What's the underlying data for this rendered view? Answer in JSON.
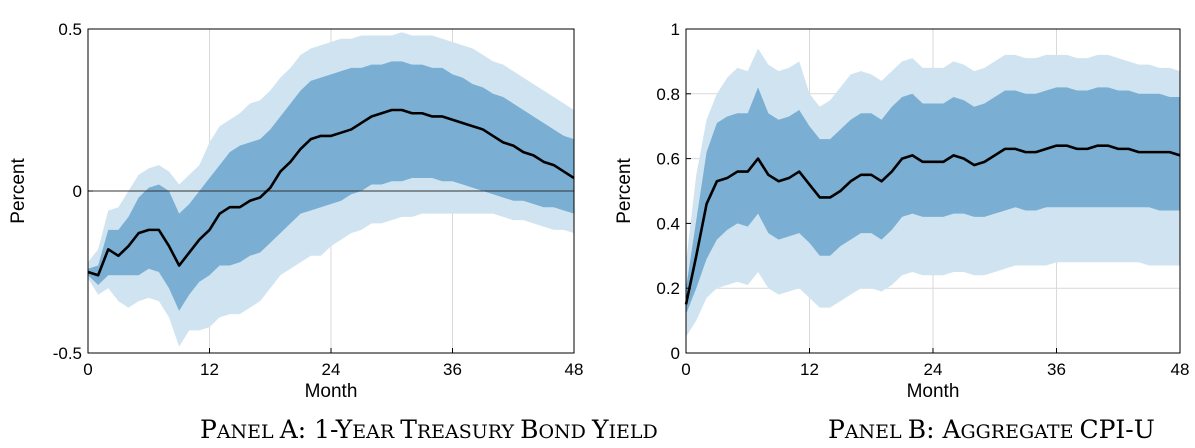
{
  "colors": {
    "outer_band": "#cfe4f0",
    "inner_band": "#7aafd3",
    "line": "#000000",
    "grid": "#d9d9d9",
    "zero_line": "#333333"
  },
  "chart_data": [
    {
      "type": "area",
      "caption_parts": [
        {
          "t": "P",
          "big": true
        },
        {
          "t": "ANEL ",
          "big": false
        },
        {
          "t": "A: 1-Y",
          "big": true
        },
        {
          "t": "EAR ",
          "big": false
        },
        {
          "t": "T",
          "big": true
        },
        {
          "t": "REASURY ",
          "big": false
        },
        {
          "t": "B",
          "big": true
        },
        {
          "t": "OND ",
          "big": false
        },
        {
          "t": "Y",
          "big": true
        },
        {
          "t": "IELD",
          "big": false
        }
      ],
      "xlabel": "Month",
      "ylabel": "Percent",
      "xlim": [
        0,
        48
      ],
      "ylim": [
        -0.5,
        0.5
      ],
      "xticks": [
        0,
        12,
        24,
        36,
        48
      ],
      "yticks": [
        -0.5,
        0,
        0.5
      ],
      "ytick_labels": [
        "-0.5",
        "0",
        "0.5"
      ],
      "zero_line": true,
      "grid": "vertical",
      "x": [
        0,
        1,
        2,
        3,
        4,
        5,
        6,
        7,
        8,
        9,
        10,
        11,
        12,
        13,
        14,
        15,
        16,
        17,
        18,
        19,
        20,
        21,
        22,
        23,
        24,
        25,
        26,
        27,
        28,
        29,
        30,
        31,
        32,
        33,
        34,
        35,
        36,
        37,
        38,
        39,
        40,
        41,
        42,
        43,
        44,
        45,
        46,
        47,
        48
      ],
      "series": [
        {
          "role": "point_estimate",
          "values": [
            -0.25,
            -0.26,
            -0.18,
            -0.2,
            -0.17,
            -0.13,
            -0.12,
            -0.12,
            -0.17,
            -0.23,
            -0.19,
            -0.15,
            -0.12,
            -0.07,
            -0.05,
            -0.05,
            -0.03,
            -0.02,
            0.01,
            0.06,
            0.09,
            0.13,
            0.16,
            0.17,
            0.17,
            0.18,
            0.19,
            0.21,
            0.23,
            0.24,
            0.25,
            0.25,
            0.24,
            0.24,
            0.23,
            0.23,
            0.22,
            0.21,
            0.2,
            0.19,
            0.17,
            0.15,
            0.14,
            0.12,
            0.11,
            0.09,
            0.08,
            0.06,
            0.04
          ]
        },
        {
          "role": "inner_band",
          "lower": [
            -0.26,
            -0.29,
            -0.26,
            -0.26,
            -0.26,
            -0.26,
            -0.24,
            -0.25,
            -0.3,
            -0.37,
            -0.32,
            -0.28,
            -0.26,
            -0.23,
            -0.23,
            -0.22,
            -0.2,
            -0.19,
            -0.16,
            -0.13,
            -0.1,
            -0.07,
            -0.06,
            -0.05,
            -0.04,
            -0.03,
            -0.01,
            0.0,
            0.02,
            0.02,
            0.03,
            0.03,
            0.04,
            0.04,
            0.04,
            0.03,
            0.03,
            0.02,
            0.01,
            0.0,
            -0.01,
            -0.02,
            -0.03,
            -0.03,
            -0.04,
            -0.05,
            -0.05,
            -0.06,
            -0.07
          ],
          "upper": [
            -0.24,
            -0.23,
            -0.12,
            -0.12,
            -0.08,
            -0.02,
            0.01,
            0.02,
            0.0,
            -0.07,
            -0.04,
            0.0,
            0.04,
            0.08,
            0.12,
            0.14,
            0.15,
            0.16,
            0.19,
            0.23,
            0.27,
            0.31,
            0.34,
            0.35,
            0.36,
            0.37,
            0.38,
            0.38,
            0.39,
            0.39,
            0.4,
            0.4,
            0.39,
            0.39,
            0.38,
            0.38,
            0.36,
            0.35,
            0.33,
            0.32,
            0.3,
            0.29,
            0.27,
            0.25,
            0.23,
            0.21,
            0.19,
            0.17,
            0.16
          ]
        },
        {
          "role": "outer_band",
          "lower": [
            -0.27,
            -0.32,
            -0.3,
            -0.34,
            -0.36,
            -0.34,
            -0.33,
            -0.34,
            -0.39,
            -0.48,
            -0.43,
            -0.43,
            -0.42,
            -0.39,
            -0.38,
            -0.38,
            -0.36,
            -0.34,
            -0.3,
            -0.26,
            -0.24,
            -0.22,
            -0.2,
            -0.2,
            -0.17,
            -0.15,
            -0.13,
            -0.12,
            -0.1,
            -0.1,
            -0.09,
            -0.08,
            -0.08,
            -0.07,
            -0.07,
            -0.07,
            -0.07,
            -0.07,
            -0.07,
            -0.07,
            -0.07,
            -0.08,
            -0.09,
            -0.09,
            -0.1,
            -0.11,
            -0.12,
            -0.12,
            -0.13
          ]
        },
        {
          "role": "outer_band_upper",
          "upper": [
            -0.22,
            -0.18,
            -0.06,
            -0.05,
            0.0,
            0.05,
            0.07,
            0.08,
            0.06,
            0.02,
            0.05,
            0.08,
            0.15,
            0.2,
            0.22,
            0.24,
            0.27,
            0.28,
            0.31,
            0.35,
            0.38,
            0.42,
            0.44,
            0.45,
            0.46,
            0.47,
            0.47,
            0.48,
            0.48,
            0.48,
            0.48,
            0.49,
            0.48,
            0.48,
            0.48,
            0.47,
            0.46,
            0.45,
            0.44,
            0.42,
            0.4,
            0.39,
            0.37,
            0.35,
            0.33,
            0.31,
            0.29,
            0.27,
            0.25
          ]
        }
      ]
    },
    {
      "type": "area",
      "caption_parts": [
        {
          "t": "P",
          "big": true
        },
        {
          "t": "ANEL ",
          "big": false
        },
        {
          "t": "B: A",
          "big": true
        },
        {
          "t": "GGREGATE ",
          "big": false
        },
        {
          "t": "CPI-U",
          "big": true
        }
      ],
      "xlabel": "Month",
      "ylabel": "Percent",
      "xlim": [
        0,
        48
      ],
      "ylim": [
        0,
        1
      ],
      "xticks": [
        0,
        12,
        24,
        36,
        48
      ],
      "yticks": [
        0,
        0.2,
        0.4,
        0.6,
        0.8,
        1
      ],
      "ytick_labels": [
        "0",
        "0.2",
        "0.4",
        "0.6",
        "0.8",
        "1"
      ],
      "zero_line": false,
      "grid": "both",
      "x": [
        0,
        1,
        2,
        3,
        4,
        5,
        6,
        7,
        8,
        9,
        10,
        11,
        12,
        13,
        14,
        15,
        16,
        17,
        18,
        19,
        20,
        21,
        22,
        23,
        24,
        25,
        26,
        27,
        28,
        29,
        30,
        31,
        32,
        33,
        34,
        35,
        36,
        37,
        38,
        39,
        40,
        41,
        42,
        43,
        44,
        45,
        46,
        47,
        48
      ],
      "series": [
        {
          "role": "point_estimate",
          "values": [
            0.15,
            0.3,
            0.46,
            0.53,
            0.54,
            0.56,
            0.56,
            0.6,
            0.55,
            0.53,
            0.54,
            0.56,
            0.52,
            0.48,
            0.48,
            0.5,
            0.53,
            0.55,
            0.55,
            0.53,
            0.56,
            0.6,
            0.61,
            0.59,
            0.59,
            0.59,
            0.61,
            0.6,
            0.58,
            0.59,
            0.61,
            0.63,
            0.63,
            0.62,
            0.62,
            0.63,
            0.64,
            0.64,
            0.63,
            0.63,
            0.64,
            0.64,
            0.63,
            0.63,
            0.62,
            0.62,
            0.62,
            0.62,
            0.61
          ]
        },
        {
          "role": "inner_band",
          "lower": [
            0.12,
            0.2,
            0.29,
            0.35,
            0.38,
            0.4,
            0.39,
            0.43,
            0.37,
            0.35,
            0.36,
            0.37,
            0.34,
            0.3,
            0.3,
            0.33,
            0.35,
            0.37,
            0.37,
            0.35,
            0.38,
            0.42,
            0.43,
            0.42,
            0.42,
            0.42,
            0.43,
            0.43,
            0.42,
            0.42,
            0.43,
            0.44,
            0.45,
            0.44,
            0.44,
            0.45,
            0.45,
            0.45,
            0.45,
            0.45,
            0.45,
            0.45,
            0.45,
            0.45,
            0.45,
            0.45,
            0.44,
            0.44,
            0.44
          ],
          "upper": [
            0.2,
            0.41,
            0.62,
            0.71,
            0.73,
            0.74,
            0.74,
            0.82,
            0.74,
            0.72,
            0.73,
            0.75,
            0.7,
            0.66,
            0.66,
            0.69,
            0.72,
            0.74,
            0.74,
            0.72,
            0.76,
            0.79,
            0.8,
            0.77,
            0.77,
            0.77,
            0.79,
            0.78,
            0.76,
            0.77,
            0.79,
            0.81,
            0.81,
            0.8,
            0.8,
            0.81,
            0.82,
            0.82,
            0.81,
            0.81,
            0.82,
            0.82,
            0.81,
            0.81,
            0.8,
            0.8,
            0.8,
            0.79,
            0.79
          ]
        },
        {
          "role": "outer_band",
          "lower": [
            0.05,
            0.1,
            0.17,
            0.2,
            0.21,
            0.22,
            0.21,
            0.25,
            0.2,
            0.18,
            0.19,
            0.2,
            0.17,
            0.14,
            0.14,
            0.16,
            0.18,
            0.2,
            0.2,
            0.19,
            0.21,
            0.24,
            0.25,
            0.24,
            0.24,
            0.24,
            0.25,
            0.25,
            0.24,
            0.24,
            0.25,
            0.26,
            0.27,
            0.27,
            0.27,
            0.27,
            0.28,
            0.28,
            0.28,
            0.28,
            0.28,
            0.28,
            0.28,
            0.28,
            0.28,
            0.27,
            0.27,
            0.27,
            0.27
          ]
        },
        {
          "role": "outer_band_upper",
          "upper": [
            0.28,
            0.55,
            0.72,
            0.8,
            0.85,
            0.88,
            0.87,
            0.94,
            0.89,
            0.87,
            0.88,
            0.9,
            0.8,
            0.76,
            0.78,
            0.82,
            0.86,
            0.87,
            0.86,
            0.84,
            0.87,
            0.9,
            0.91,
            0.88,
            0.88,
            0.88,
            0.9,
            0.89,
            0.87,
            0.88,
            0.9,
            0.92,
            0.92,
            0.91,
            0.91,
            0.92,
            0.92,
            0.92,
            0.91,
            0.91,
            0.92,
            0.92,
            0.91,
            0.9,
            0.89,
            0.89,
            0.88,
            0.88,
            0.87
          ]
        }
      ]
    }
  ]
}
